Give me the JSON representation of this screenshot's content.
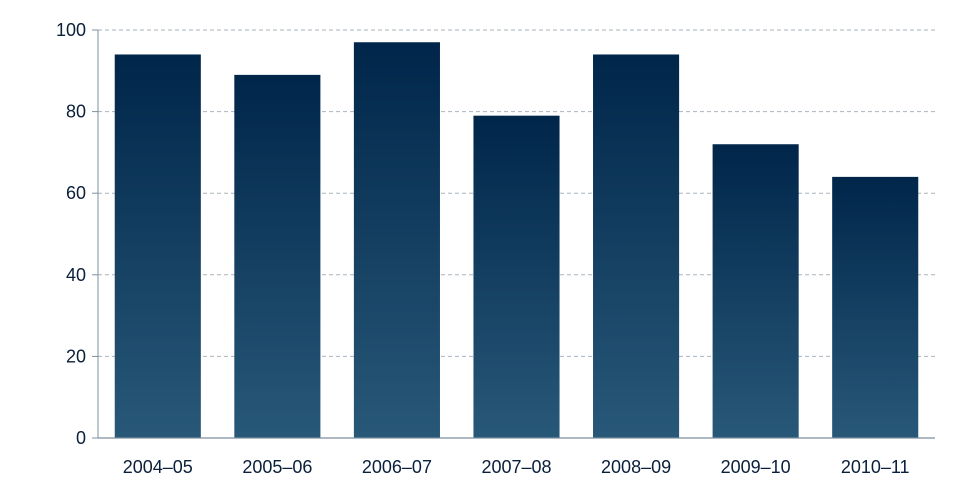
{
  "chart_data": {
    "type": "bar",
    "title": "",
    "xlabel": "",
    "ylabel": "",
    "categories": [
      "2004–05",
      "2005–06",
      "2006–07",
      "2007–08",
      "2008–09",
      "2009–10",
      "2010–11"
    ],
    "values": [
      94,
      89,
      97,
      79,
      94,
      72,
      64
    ],
    "ylim": [
      0,
      100
    ],
    "yticks": [
      0,
      20,
      40,
      60,
      80,
      100
    ],
    "grid": true,
    "grid_style": "dashed",
    "colors": {
      "bar_top": "#00264a",
      "bar_bottom": "#285878",
      "grid": "#a9b3be",
      "axis": "#7f8f9f",
      "text": "#0a1f3a"
    }
  }
}
